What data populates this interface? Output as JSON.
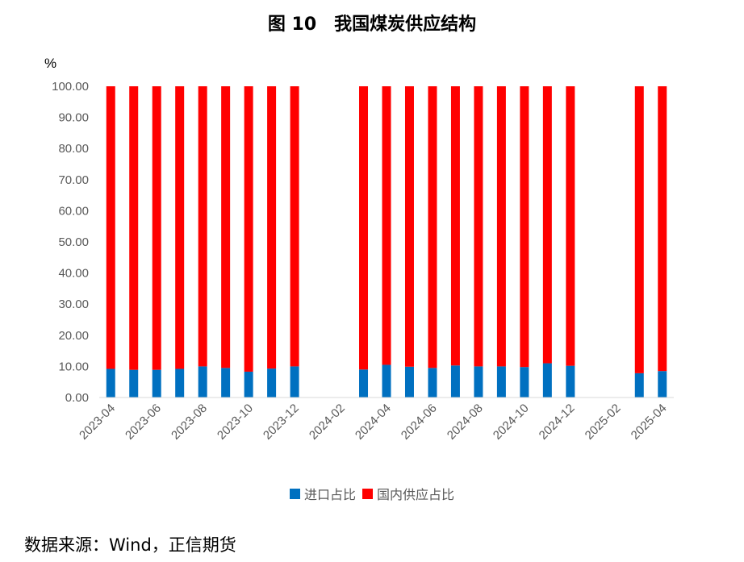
{
  "chart_data": {
    "type": "bar",
    "stacked": true,
    "title": "图 10　我国煤炭供应结构",
    "unit": "%",
    "ylim": [
      0,
      100
    ],
    "yticks": [
      "0.00",
      "10.00",
      "20.00",
      "30.00",
      "40.00",
      "50.00",
      "60.00",
      "70.00",
      "80.00",
      "90.00",
      "100.00"
    ],
    "categories": [
      "2023-04",
      "2023-05",
      "2023-06",
      "2023-07",
      "2023-08",
      "2023-09",
      "2023-10",
      "2023-11",
      "2023-12",
      "2024-01",
      "2024-02",
      "2024-03",
      "2024-04",
      "2024-05",
      "2024-06",
      "2024-07",
      "2024-08",
      "2024-09",
      "2024-10",
      "2024-11",
      "2024-12",
      "2025-01",
      "2025-02",
      "2025-03",
      "2025-04"
    ],
    "xtick_labels": [
      "2023-04",
      "2023-06",
      "2023-08",
      "2023-10",
      "2023-12",
      "2024-02",
      "2024-04",
      "2024-06",
      "2024-08",
      "2024-10",
      "2024-12",
      "2025-02",
      "2025-04"
    ],
    "series": [
      {
        "name": "进口占比",
        "color": "#0070C0",
        "values": [
          9.2,
          8.9,
          8.9,
          9.2,
          10.0,
          9.5,
          8.3,
          9.3,
          10.0,
          null,
          null,
          9.0,
          10.5,
          9.9,
          9.5,
          10.3,
          10.0,
          10.0,
          9.8,
          11.0,
          10.2,
          null,
          null,
          7.8,
          8.5
        ]
      },
      {
        "name": "国内供应占比",
        "color": "#FF0000",
        "values": [
          90.8,
          91.1,
          91.1,
          90.8,
          90.0,
          90.5,
          91.7,
          90.7,
          90.0,
          null,
          null,
          91.0,
          89.5,
          90.1,
          90.5,
          89.7,
          90.0,
          90.0,
          90.2,
          89.0,
          89.8,
          null,
          null,
          92.2,
          91.5
        ]
      }
    ],
    "grid": false,
    "legend": "bottom"
  },
  "source": "数据来源：Wind，正信期货"
}
